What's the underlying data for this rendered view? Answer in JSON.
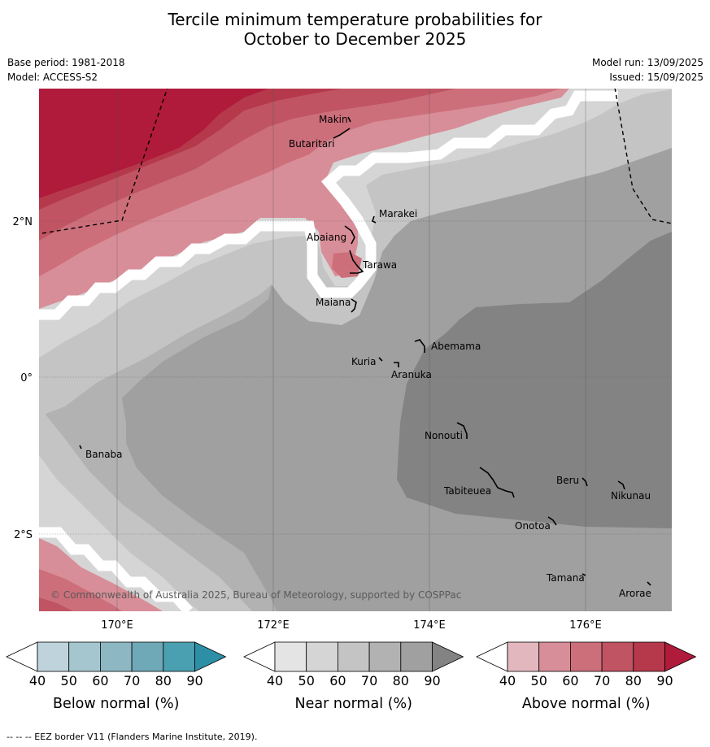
{
  "title": {
    "line1": "Tercile minimum temperature probabilities for",
    "line2": "October to December 2025"
  },
  "meta": {
    "base_period": "Base period: 1981-2018",
    "model": "Model: ACCESS-S2",
    "model_run": "Model run: 13/09/2025",
    "issued": "Issued: 15/09/2025"
  },
  "axes": {
    "lon_ticks": [
      "170°E",
      "172°E",
      "174°E",
      "176°E"
    ],
    "lat_ticks": [
      "2°N",
      "0°",
      "2°S"
    ]
  },
  "places": [
    {
      "name": "Makin"
    },
    {
      "name": "Butaritari"
    },
    {
      "name": "Marakei"
    },
    {
      "name": "Abaiang"
    },
    {
      "name": "Tarawa"
    },
    {
      "name": "Maiana"
    },
    {
      "name": "Abemama"
    },
    {
      "name": "Kuria"
    },
    {
      "name": "Aranuka"
    },
    {
      "name": "Banaba"
    },
    {
      "name": "Nonouti"
    },
    {
      "name": "Beru"
    },
    {
      "name": "Tabiteuea"
    },
    {
      "name": "Nikunau"
    },
    {
      "name": "Onotoa"
    },
    {
      "name": "Tamana"
    },
    {
      "name": "Arorae"
    }
  ],
  "copyright": "© Commonwealth of Australia 2025, Bureau of Meteorology, supported by COSPPac",
  "colorbars": [
    {
      "label": "Below normal (%)",
      "ticks": [
        "40",
        "50",
        "60",
        "70",
        "80",
        "90"
      ],
      "colors": [
        "#ffffff",
        "#bed3db",
        "#a5c6cf",
        "#8db7c3",
        "#6fa9b7",
        "#4aa0b1",
        "#2d8fa6"
      ]
    },
    {
      "label": "Near normal (%)",
      "ticks": [
        "40",
        "50",
        "60",
        "70",
        "80",
        "90"
      ],
      "colors": [
        "#ffffff",
        "#e4e4e4",
        "#d5d5d5",
        "#c4c4c4",
        "#b2b2b2",
        "#a0a0a0",
        "#838383"
      ]
    },
    {
      "label": "Above normal (%)",
      "ticks": [
        "40",
        "50",
        "60",
        "70",
        "80",
        "90"
      ],
      "colors": [
        "#ffffff",
        "#e3b7be",
        "#d88e98",
        "#cc6f7b",
        "#c05462",
        "#b5394b",
        "#b01a3b"
      ]
    }
  ],
  "footnote": "-- -- -- EEZ border V11 (Flanders Marine Institute, 2019)."
}
